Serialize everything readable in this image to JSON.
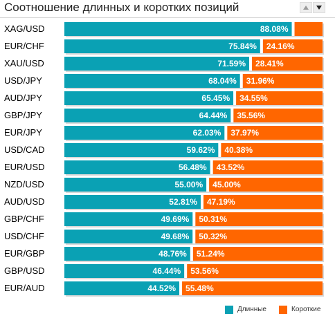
{
  "header": {
    "title": "Соотношение длинных и коротких позиций",
    "sort_up_icon": "triangle-up-icon",
    "sort_down_icon": "triangle-down-icon"
  },
  "colors": {
    "long": "#0aa1b4",
    "short": "#ff6600",
    "track": "#d9d9d9",
    "text": "#ffffff"
  },
  "legend": {
    "long_label": "Длинные",
    "short_label": "Короткие"
  },
  "chart_data": {
    "type": "bar",
    "stacked": true,
    "orientation": "horizontal",
    "title": "Соотношение длинных и коротких позиций",
    "categories": [
      "XAG/USD",
      "EUR/CHF",
      "XAU/USD",
      "USD/JPY",
      "AUD/JPY",
      "GBP/JPY",
      "EUR/JPY",
      "USD/CAD",
      "EUR/USD",
      "NZD/USD",
      "AUD/USD",
      "GBP/CHF",
      "USD/CHF",
      "EUR/GBP",
      "GBP/USD",
      "EUR/AUD"
    ],
    "series": [
      {
        "name": "Длинные",
        "values": [
          88.08,
          75.84,
          71.59,
          68.04,
          65.45,
          64.44,
          62.03,
          59.62,
          56.48,
          55.0,
          52.81,
          49.69,
          49.68,
          48.76,
          46.44,
          44.52
        ],
        "labels": [
          "88.08%",
          "75.84%",
          "71.59%",
          "68.04%",
          "65.45%",
          "64.44%",
          "62.03%",
          "59.62%",
          "56.48%",
          "55.00%",
          "52.81%",
          "49.69%",
          "49.68%",
          "48.76%",
          "46.44%",
          "44.52%"
        ]
      },
      {
        "name": "Короткие",
        "values": [
          11.92,
          24.16,
          28.41,
          31.96,
          34.55,
          35.56,
          37.97,
          40.38,
          43.52,
          45.0,
          47.19,
          50.31,
          50.32,
          51.24,
          53.56,
          55.48
        ],
        "labels": [
          "",
          "24.16%",
          "28.41%",
          "31.96%",
          "34.55%",
          "35.56%",
          "37.97%",
          "40.38%",
          "43.52%",
          "45.00%",
          "47.19%",
          "50.31%",
          "50.32%",
          "51.24%",
          "53.56%",
          "55.48%"
        ]
      }
    ],
    "xlim": [
      0,
      100
    ],
    "legend_position": "bottom-right"
  }
}
